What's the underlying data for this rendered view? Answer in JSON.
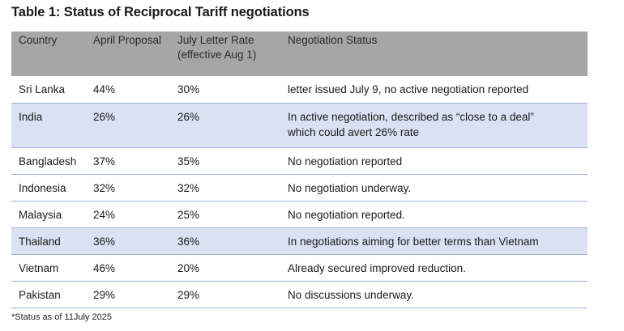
{
  "title": "Table 1: Status of Reciprocal Tariff negotiations",
  "table": {
    "headers": [
      {
        "line1": "Country",
        "line2": ""
      },
      {
        "line1": "April Proposal",
        "line2": ""
      },
      {
        "line1": "July Letter Rate",
        "line2": "(effective Aug 1)"
      },
      {
        "line1": "Negotiation Status",
        "line2": ""
      }
    ],
    "rows": [
      {
        "country": "Sri Lanka",
        "april": "44%",
        "july": "30%",
        "status1": "letter issued July 9, no active negotiation reported",
        "status2": ""
      },
      {
        "country": "India",
        "april": "26%",
        "july": "26%",
        "status1": "In active negotiation, described as “close to a deal”",
        "status2": "which could avert 26% rate"
      },
      {
        "country": "Bangladesh",
        "april": "37%",
        "july": "35%",
        "status1": "No negotiation reported",
        "status2": ""
      },
      {
        "country": "Indonesia",
        "april": "32%",
        "july": "32%",
        "status1": "No negotiation underway.",
        "status2": ""
      },
      {
        "country": "Malaysia",
        "april": "24%",
        "july": "25%",
        "status1": "No negotiation reported.",
        "status2": ""
      },
      {
        "country": "Thailand",
        "april": "36%",
        "july": "36%",
        "status1": "In negotiations aiming for better terms than Vietnam",
        "status2": ""
      },
      {
        "country": "Vietnam",
        "april": "46%",
        "july": "20%",
        "status1": "Already secured improved reduction.",
        "status2": ""
      },
      {
        "country": "Pakistan",
        "april": "29%",
        "july": "29%",
        "status1": "No discussions underway.",
        "status2": ""
      }
    ]
  },
  "footnote": "*Status as of 11July 2025",
  "colors": {
    "header_bg": "#a6a6a6",
    "shaded_row_bg": "#d9e1f2",
    "row_border": "#9db2da"
  }
}
